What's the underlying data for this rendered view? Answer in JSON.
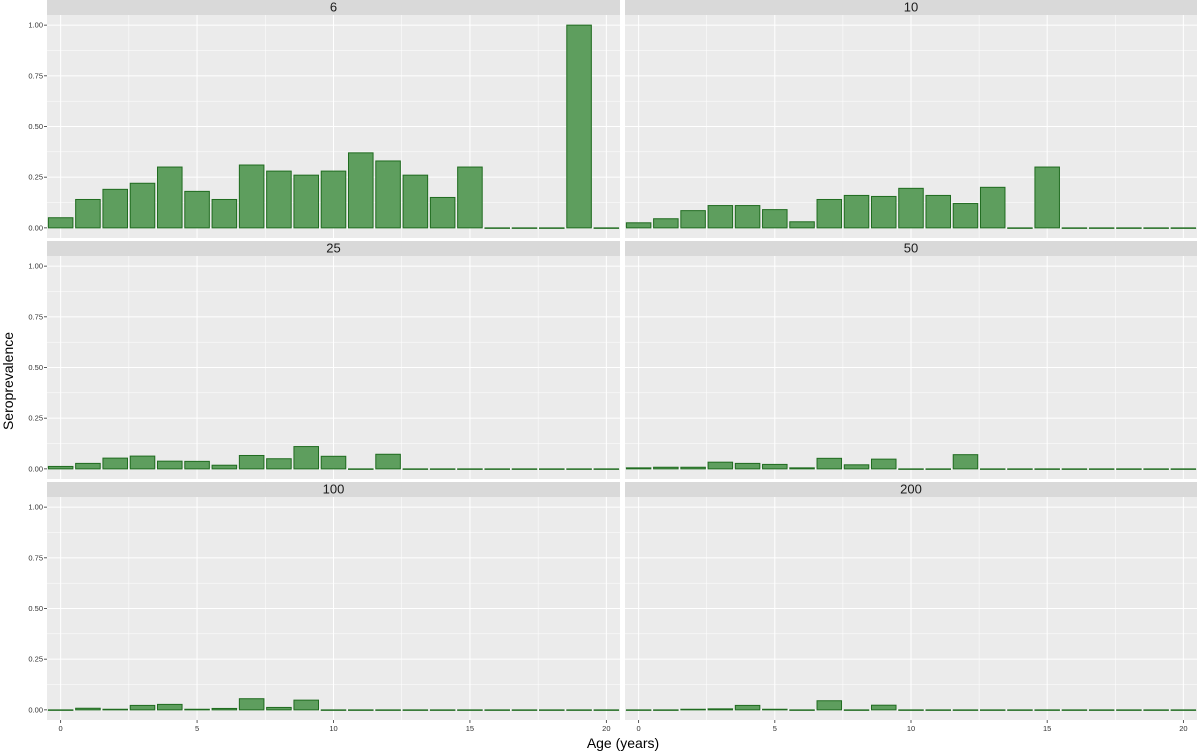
{
  "chart_data": {
    "type": "bar",
    "xlabel": "Age (years)",
    "ylabel": "Seroprevalence",
    "x": [
      0,
      1,
      2,
      3,
      4,
      5,
      6,
      7,
      8,
      9,
      10,
      11,
      12,
      13,
      14,
      15,
      16,
      17,
      18,
      19,
      20
    ],
    "xlim": [
      -0.5,
      20.5
    ],
    "ylim": [
      0,
      1.0
    ],
    "x_ticks": [
      "0",
      "5",
      "10",
      "15",
      "20"
    ],
    "y_ticks": [
      "0.00",
      "0.25",
      "0.50",
      "0.75",
      "1.00"
    ],
    "grid": true,
    "legend": "none",
    "colors": {
      "bar_fill": "#5e9e5e",
      "bar_stroke": "#1f6b1f",
      "panel_bg": "#ebebeb",
      "strip_bg": "#d9d9d9",
      "grid": "#ffffff"
    },
    "facets": [
      {
        "label": "6",
        "values": [
          0.05,
          0.14,
          0.19,
          0.22,
          0.3,
          0.18,
          0.14,
          0.31,
          0.28,
          0.26,
          0.28,
          0.37,
          0.33,
          0.26,
          0.15,
          0.3,
          0,
          0,
          0,
          1.0,
          0
        ]
      },
      {
        "label": "10",
        "values": [
          0.025,
          0.045,
          0.085,
          0.11,
          0.11,
          0.09,
          0.03,
          0.14,
          0.16,
          0.155,
          0.195,
          0.16,
          0.12,
          0.2,
          0,
          0.3,
          0,
          0,
          0,
          0,
          0
        ]
      },
      {
        "label": "25",
        "values": [
          0.012,
          0.027,
          0.053,
          0.063,
          0.038,
          0.037,
          0.018,
          0.066,
          0.05,
          0.11,
          0.062,
          0,
          0.072,
          0,
          0,
          0,
          0,
          0,
          0,
          0,
          0
        ]
      },
      {
        "label": "50",
        "values": [
          0.005,
          0.008,
          0.008,
          0.033,
          0.027,
          0.022,
          0.005,
          0.052,
          0.02,
          0.048,
          0,
          0,
          0.07,
          0,
          0,
          0,
          0,
          0,
          0,
          0,
          0
        ]
      },
      {
        "label": "100",
        "values": [
          0,
          0.008,
          0.003,
          0.022,
          0.027,
          0.003,
          0.007,
          0.055,
          0.012,
          0.048,
          0,
          0,
          0,
          0,
          0,
          0,
          0,
          0,
          0,
          0,
          0
        ]
      },
      {
        "label": "200",
        "values": [
          0,
          0,
          0.003,
          0.005,
          0.022,
          0.003,
          0,
          0.045,
          0,
          0.023,
          0,
          0,
          0,
          0,
          0,
          0,
          0,
          0,
          0,
          0,
          0
        ]
      }
    ]
  }
}
